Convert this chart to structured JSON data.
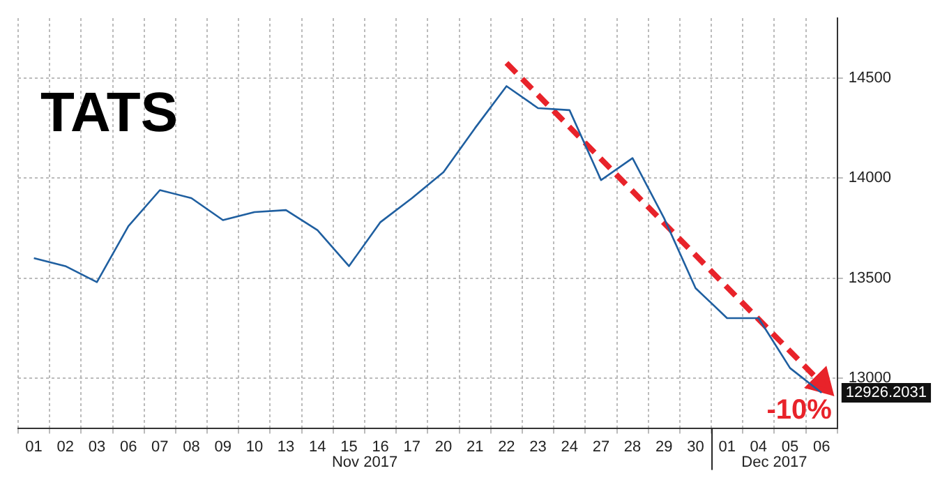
{
  "chart_data": {
    "type": "line",
    "title": "TATS",
    "legend": false,
    "grid": true,
    "marker": "none",
    "categories": [
      "01",
      "02",
      "03",
      "06",
      "07",
      "08",
      "09",
      "10",
      "13",
      "14",
      "15",
      "16",
      "17",
      "20",
      "21",
      "22",
      "23",
      "24",
      "27",
      "28",
      "29",
      "30",
      "01",
      "04",
      "05",
      "06"
    ],
    "ylim": [
      12750,
      14800
    ],
    "yticks": [
      13000,
      13500,
      14000,
      14500
    ],
    "annotations": [
      "Nov 2017",
      "Dec 2017",
      "-10%"
    ],
    "series": [
      {
        "type": "line",
        "color": "#1f5fa0",
        "values": [
          13600,
          13560,
          13480,
          13760,
          13940,
          13900,
          13790,
          13830,
          13840,
          13740,
          13560,
          13780,
          13900,
          14030,
          14250,
          14460,
          14350,
          14340,
          13990,
          14100,
          13800,
          13450,
          13300,
          13300,
          13050,
          12926.2031
        ],
        "value_labels": [
          null,
          null,
          null,
          null,
          null,
          null,
          null,
          null,
          null,
          null,
          null,
          null,
          null,
          null,
          null,
          null,
          null,
          null,
          null,
          null,
          null,
          null,
          null,
          null,
          null,
          "12926.2031"
        ]
      },
      {
        "type": "line",
        "color": "#e8232a",
        "line_style": "dashed",
        "marker": "triangle",
        "values": [
          null,
          null,
          null,
          null,
          null,
          null,
          null,
          null,
          null,
          null,
          null,
          null,
          null,
          null,
          null,
          14576,
          null,
          null,
          null,
          null,
          null,
          null,
          null,
          null,
          null,
          12974
        ]
      }
    ]
  }
}
